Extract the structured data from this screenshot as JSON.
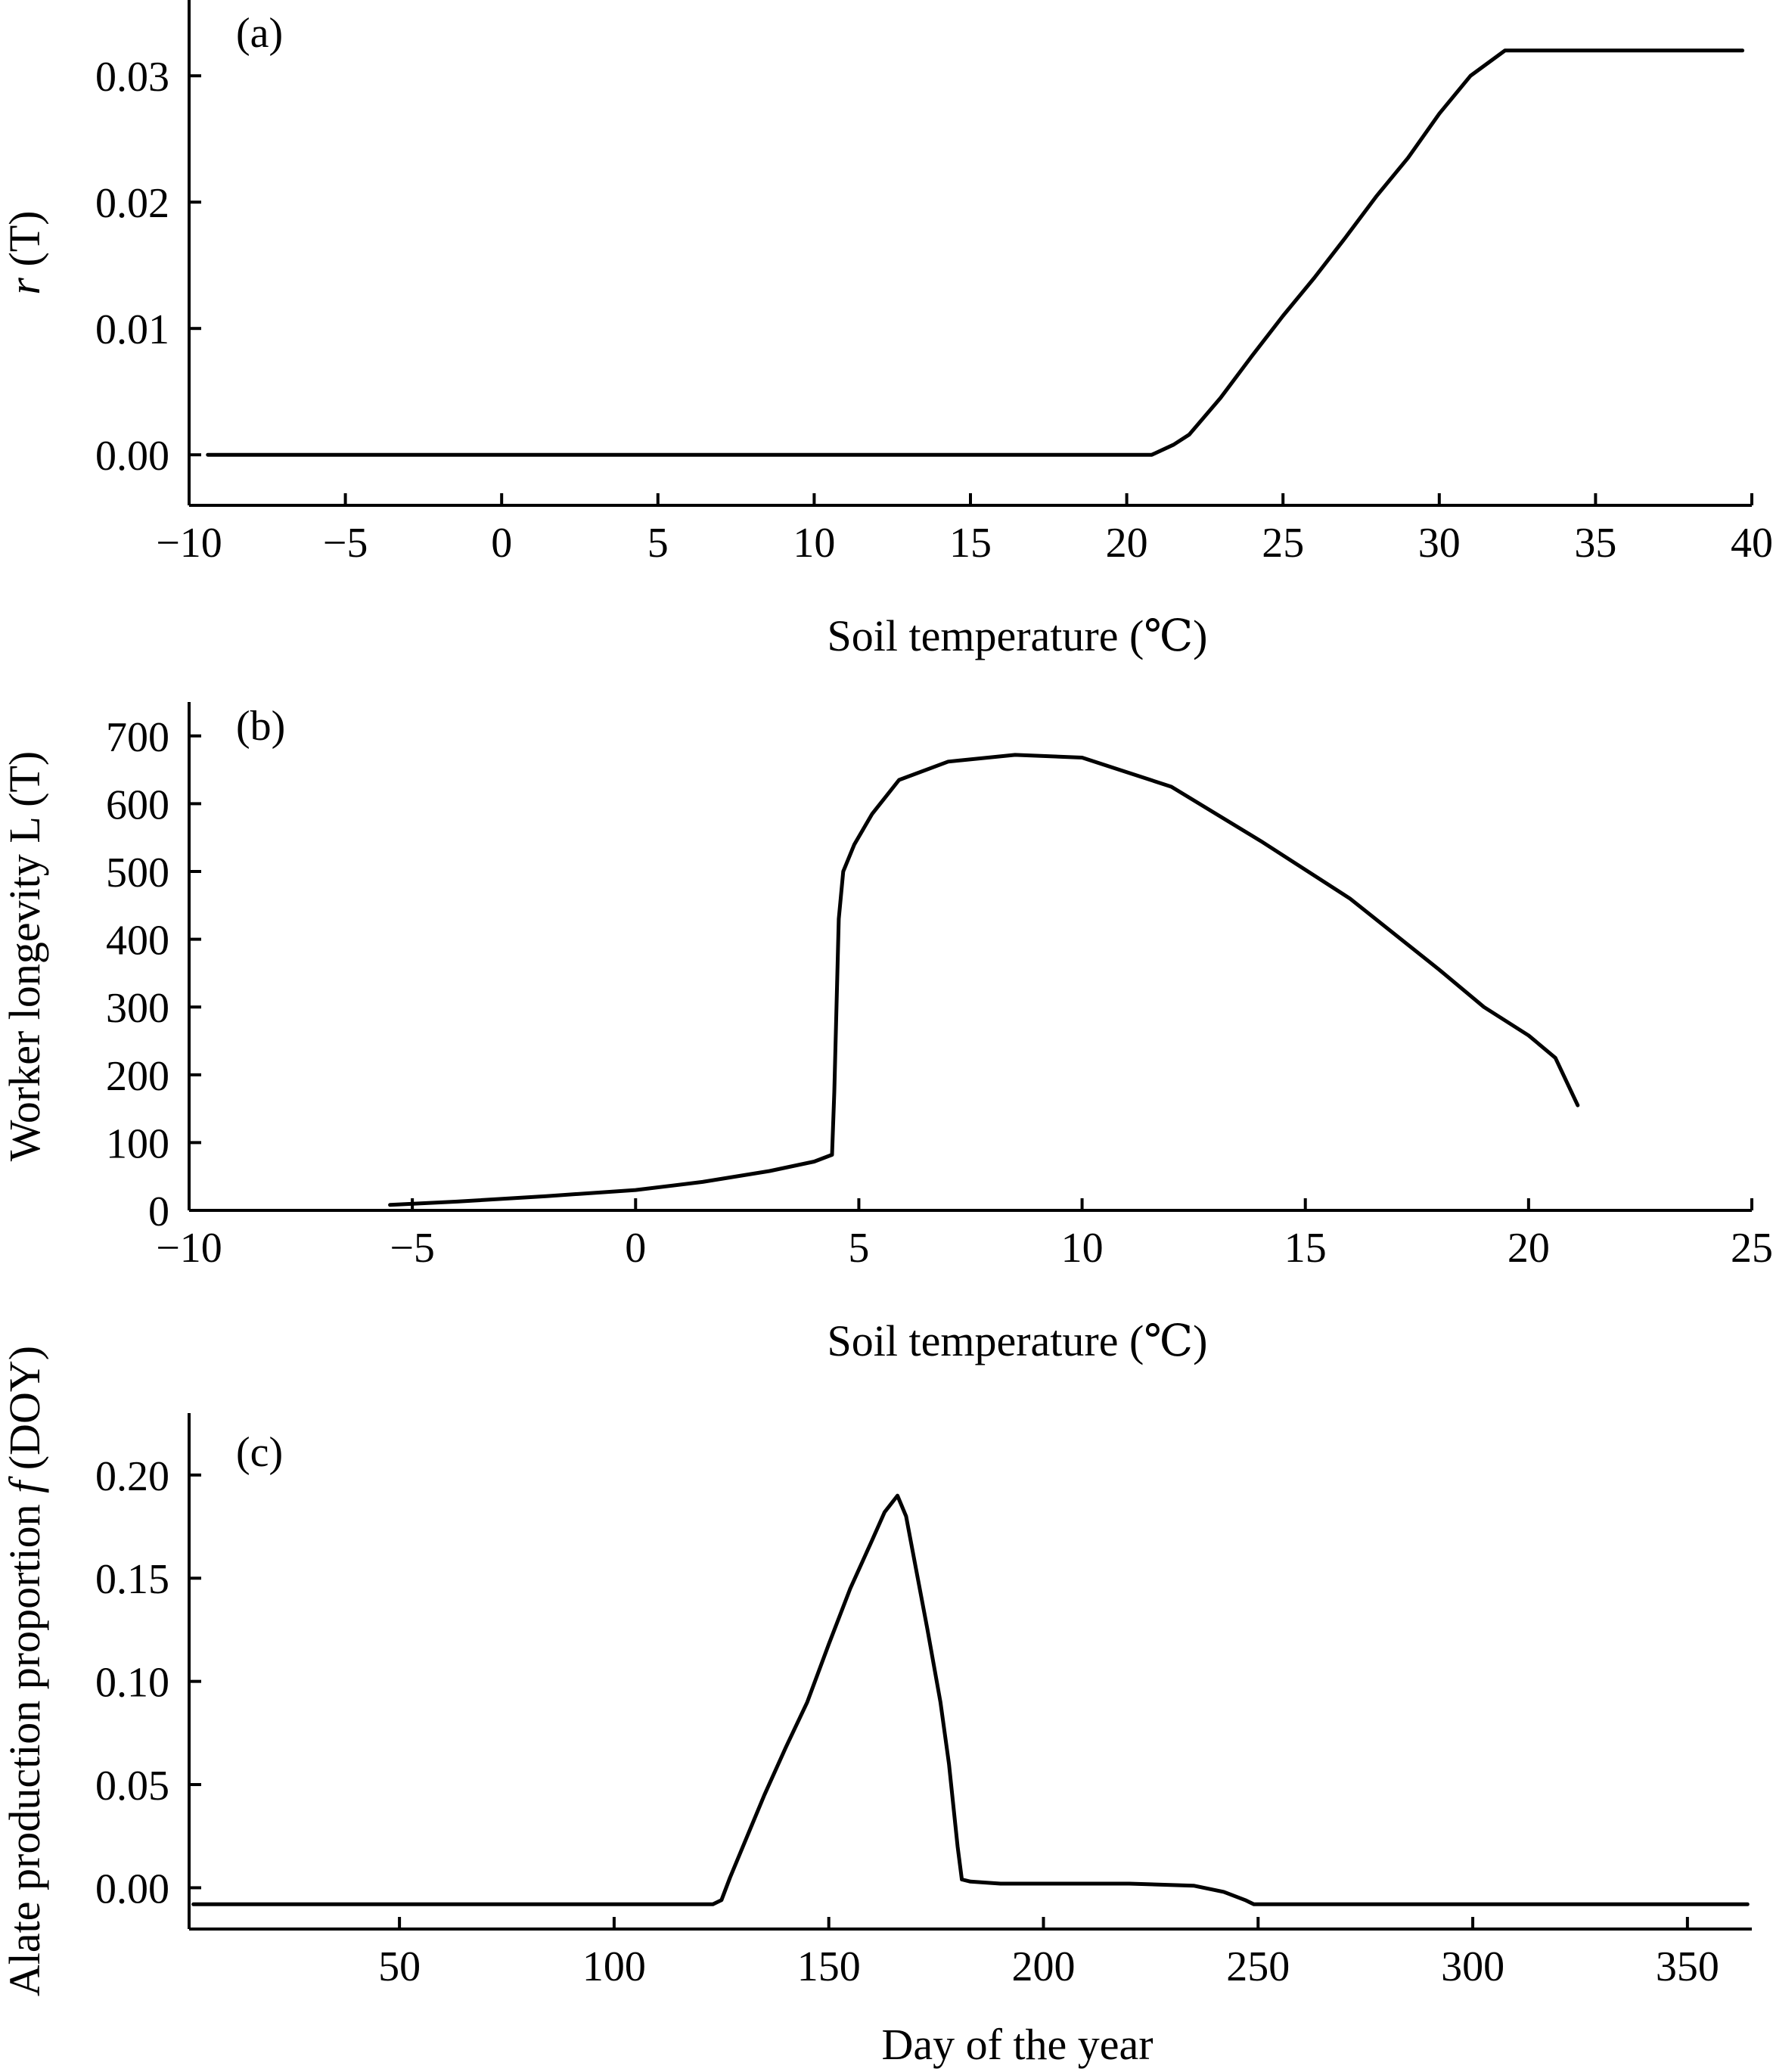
{
  "chart_data": [
    {
      "panel": "(a)",
      "type": "line",
      "xlabel": "Soil temperature (℃)",
      "ylabel_italic": "r",
      "ylabel_rest": " (T)",
      "xlim": [
        -10,
        40
      ],
      "ylim": [
        -0.004,
        0.036
      ],
      "xticks": [
        -10,
        -5,
        0,
        5,
        10,
        15,
        20,
        25,
        30,
        35,
        40
      ],
      "xtick_labels": [
        "−10",
        "−5",
        "0",
        "5",
        "10",
        "15",
        "20",
        "25",
        "30",
        "35",
        "40"
      ],
      "yticks": [
        0.0,
        0.01,
        0.02,
        0.03
      ],
      "ytick_labels": [
        "0.00",
        "0.01",
        "0.02",
        "0.03"
      ],
      "series": [
        {
          "x": [
            -9.4,
            0,
            10,
            20,
            20.8,
            21.5,
            22,
            23,
            24,
            25,
            26,
            27,
            28,
            29,
            30,
            31,
            32.1,
            35,
            39.7
          ],
          "y": [
            0.0,
            0.0,
            0.0,
            0.0,
            0.0,
            0.0008,
            0.0016,
            0.0045,
            0.0078,
            0.011,
            0.014,
            0.0172,
            0.0205,
            0.0235,
            0.027,
            0.03,
            0.032,
            0.032,
            0.032
          ]
        }
      ]
    },
    {
      "panel": "(b)",
      "type": "line",
      "xlabel": "Soil temperature (℃)",
      "ylabel": "Worker longevity L (T)",
      "xlim": [
        -10,
        25
      ],
      "ylim": [
        0,
        750
      ],
      "xticks": [
        -10,
        -5,
        0,
        5,
        10,
        15,
        20,
        25
      ],
      "xtick_labels": [
        "−10",
        "−5",
        "0",
        "5",
        "10",
        "15",
        "20",
        "25"
      ],
      "yticks": [
        0,
        100,
        200,
        300,
        400,
        500,
        600,
        700
      ],
      "ytick_labels": [
        "0",
        "100",
        "200",
        "300",
        "400",
        "500",
        "600",
        "700"
      ],
      "series": [
        {
          "x": [
            -5.5,
            -4,
            -2,
            0,
            1.5,
            3,
            4,
            4.4,
            4.45,
            4.55,
            4.65,
            4.9,
            5.3,
            5.9,
            7,
            8.5,
            10,
            12,
            14,
            16,
            18,
            19,
            20,
            20.6,
            21.1
          ],
          "y": [
            8,
            13,
            21,
            30,
            42,
            58,
            72,
            82,
            175,
            430,
            500,
            540,
            585,
            635,
            662,
            672,
            668,
            625,
            545,
            460,
            355,
            300,
            258,
            225,
            155
          ]
        }
      ]
    },
    {
      "panel": "(c)",
      "type": "line",
      "xlabel": "Day of the year",
      "ylabel_rest": "Alate production proportion ",
      "ylabel_italic": "f",
      "ylabel_tail": " (DOY)",
      "xlim": [
        1,
        365
      ],
      "ylim": [
        -0.02,
        0.23
      ],
      "xticks": [
        50,
        100,
        150,
        200,
        250,
        300,
        350
      ],
      "xtick_labels": [
        "50",
        "100",
        "150",
        "200",
        "250",
        "300",
        "350"
      ],
      "yticks": [
        0.0,
        0.05,
        0.1,
        0.15,
        0.2
      ],
      "ytick_labels": [
        "0.00",
        "0.05",
        "0.10",
        "0.15",
        "0.20"
      ],
      "series": [
        {
          "x": [
            2,
            50,
            100,
            123,
            125,
            127,
            130,
            135,
            140,
            145,
            150,
            155,
            160,
            163,
            166,
            168,
            170,
            173,
            176,
            178,
            180,
            181,
            183,
            190,
            200,
            220,
            235,
            242,
            247,
            249,
            250,
            300,
            364
          ],
          "y": [
            -0.008,
            -0.008,
            -0.008,
            -0.008,
            -0.006,
            0.005,
            0.02,
            0.045,
            0.068,
            0.09,
            0.118,
            0.145,
            0.168,
            0.182,
            0.19,
            0.18,
            0.158,
            0.125,
            0.09,
            0.06,
            0.02,
            0.004,
            0.003,
            0.002,
            0.002,
            0.002,
            0.001,
            -0.002,
            -0.006,
            -0.008,
            -0.008,
            -0.008,
            -0.008
          ]
        }
      ]
    }
  ]
}
